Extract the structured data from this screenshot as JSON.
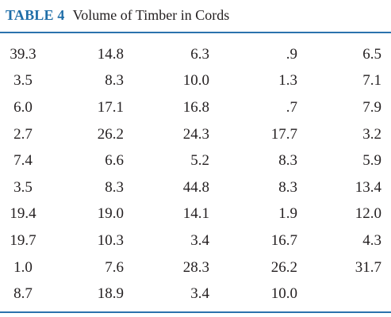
{
  "table": {
    "label": "TABLE 4",
    "caption": "Volume of Timber in Cords",
    "rows": [
      [
        "39.3",
        "14.8",
        "6.3",
        ".9",
        "6.5"
      ],
      [
        "3.5",
        "8.3",
        "10.0",
        "1.3",
        "7.1"
      ],
      [
        "6.0",
        "17.1",
        "16.8",
        ".7",
        "7.9"
      ],
      [
        "2.7",
        "26.2",
        "24.3",
        "17.7",
        "3.2"
      ],
      [
        "7.4",
        "6.6",
        "5.2",
        "8.3",
        "5.9"
      ],
      [
        "3.5",
        "8.3",
        "44.8",
        "8.3",
        "13.4"
      ],
      [
        "19.4",
        "19.0",
        "14.1",
        "1.9",
        "12.0"
      ],
      [
        "19.7",
        "10.3",
        "3.4",
        "16.7",
        "4.3"
      ],
      [
        "1.0",
        "7.6",
        "28.3",
        "26.2",
        "31.7"
      ],
      [
        "8.7",
        "18.9",
        "3.4",
        "10.0",
        ""
      ]
    ]
  },
  "colors": {
    "accent": "#1f6ea8",
    "rule": "#2b73ad",
    "text": "#231f20"
  }
}
